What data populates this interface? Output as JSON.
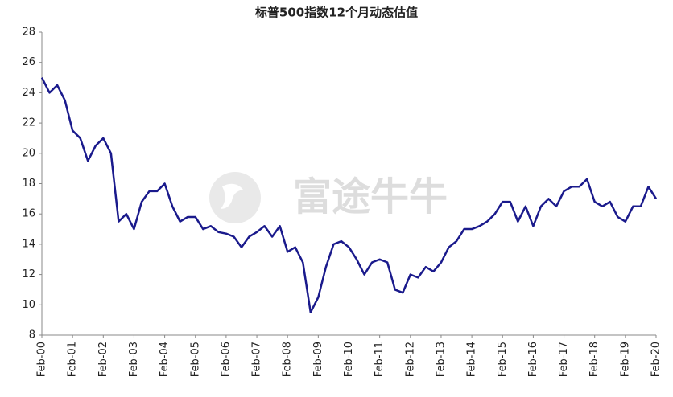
{
  "chart_data": {
    "type": "line",
    "title": "标普500指数12个月动态估值",
    "watermark": "富途牛牛",
    "x": [
      "Feb-00",
      "May-00",
      "Aug-00",
      "Nov-00",
      "Feb-01",
      "May-01",
      "Aug-01",
      "Nov-01",
      "Feb-02",
      "May-02",
      "Aug-02",
      "Nov-02",
      "Feb-03",
      "May-03",
      "Aug-03",
      "Nov-03",
      "Feb-04",
      "May-04",
      "Aug-04",
      "Nov-04",
      "Feb-05",
      "May-05",
      "Aug-05",
      "Nov-05",
      "Feb-06",
      "May-06",
      "Aug-06",
      "Nov-06",
      "Feb-07",
      "May-07",
      "Aug-07",
      "Nov-07",
      "Feb-08",
      "May-08",
      "Aug-08",
      "Nov-08",
      "Feb-09",
      "May-09",
      "Aug-09",
      "Nov-09",
      "Feb-10",
      "May-10",
      "Aug-10",
      "Nov-10",
      "Feb-11",
      "May-11",
      "Aug-11",
      "Nov-11",
      "Feb-12",
      "May-12",
      "Aug-12",
      "Nov-12",
      "Feb-13",
      "May-13",
      "Aug-13",
      "Nov-13",
      "Feb-14",
      "May-14",
      "Aug-14",
      "Nov-14",
      "Feb-15",
      "May-15",
      "Aug-15",
      "Nov-15",
      "Feb-16",
      "May-16",
      "Aug-16",
      "Nov-16",
      "Feb-17",
      "May-17",
      "Aug-17",
      "Nov-17",
      "Feb-18",
      "May-18",
      "Aug-18",
      "Nov-18",
      "Feb-19",
      "May-19",
      "Aug-19",
      "Nov-19",
      "Feb-20"
    ],
    "series": [
      {
        "color": "#1a1a8c",
        "values": [
          25.0,
          24.0,
          24.5,
          23.5,
          21.5,
          21.0,
          19.5,
          20.5,
          21.0,
          20.0,
          15.5,
          16.0,
          15.0,
          16.8,
          17.5,
          17.5,
          18.0,
          16.5,
          15.5,
          15.8,
          15.8,
          15.0,
          15.2,
          14.8,
          14.7,
          14.5,
          13.8,
          14.5,
          14.8,
          15.2,
          14.5,
          15.2,
          13.5,
          13.8,
          12.8,
          9.5,
          10.5,
          12.5,
          14.0,
          14.2,
          13.8,
          13.0,
          12.0,
          12.8,
          13.0,
          12.8,
          11.0,
          10.8,
          12.0,
          11.8,
          12.5,
          12.2,
          12.8,
          13.8,
          14.2,
          15.0,
          15.0,
          15.2,
          15.5,
          16.0,
          16.8,
          16.8,
          15.5,
          16.5,
          15.2,
          16.5,
          17.0,
          16.5,
          17.5,
          17.8,
          17.8,
          18.3,
          16.8,
          16.5,
          16.8,
          15.8,
          15.5,
          16.5,
          16.5,
          17.8,
          17.0
        ]
      }
    ],
    "xticks": [
      "Feb-00",
      "Feb-01",
      "Feb-02",
      "Feb-03",
      "Feb-04",
      "Feb-05",
      "Feb-06",
      "Feb-07",
      "Feb-08",
      "Feb-09",
      "Feb-10",
      "Feb-11",
      "Feb-12",
      "Feb-13",
      "Feb-14",
      "Feb-15",
      "Feb-16",
      "Feb-17",
      "Feb-18",
      "Feb-19",
      "Feb-20"
    ],
    "ylim": [
      8,
      28
    ],
    "yticks": [
      8,
      10,
      12,
      14,
      16,
      18,
      20,
      22,
      24,
      26,
      28
    ],
    "grid": false
  }
}
